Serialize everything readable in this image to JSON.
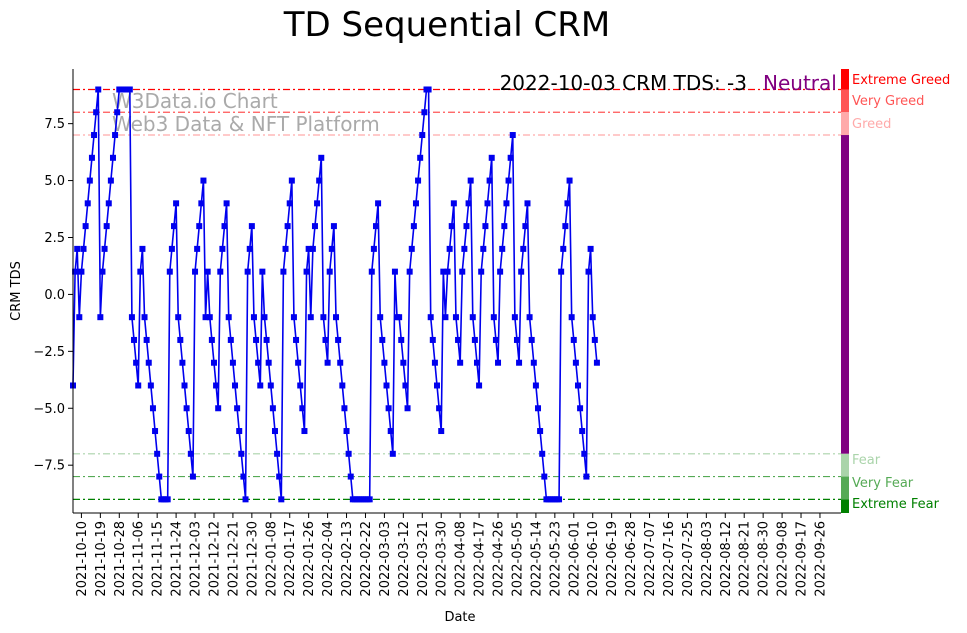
{
  "chart_data": {
    "type": "line",
    "title": "TD Sequential CRM",
    "xlabel": "Date",
    "ylabel": "CRM TDS",
    "ylim": [
      -9.6,
      9.9
    ],
    "xlim": [
      "2021-10-06",
      "2022-10-06"
    ],
    "yticks": [
      -7.5,
      -5.0,
      -2.5,
      0.0,
      2.5,
      5.0,
      7.5
    ],
    "ytick_labels": [
      "−7.5",
      "−5.0",
      "−2.5",
      "0.0",
      "2.5",
      "5.0",
      "7.5"
    ],
    "xticks": [
      "2021-10-10",
      "2021-10-19",
      "2021-10-28",
      "2021-11-06",
      "2021-11-15",
      "2021-11-24",
      "2021-12-03",
      "2021-12-12",
      "2021-12-21",
      "2021-12-30",
      "2022-01-08",
      "2022-01-17",
      "2022-01-26",
      "2022-02-04",
      "2022-02-13",
      "2022-02-22",
      "2022-03-03",
      "2022-03-12",
      "2022-03-21",
      "2022-03-30",
      "2022-04-08",
      "2022-04-17",
      "2022-04-26",
      "2022-05-05",
      "2022-05-14",
      "2022-05-23",
      "2022-06-01",
      "2022-06-10",
      "2022-06-19",
      "2022-06-28",
      "2022-07-07",
      "2022-07-16",
      "2022-07-25",
      "2022-08-03",
      "2022-08-12",
      "2022-08-21",
      "2022-08-30",
      "2022-09-08",
      "2022-09-17",
      "2022-09-26"
    ],
    "grid": false,
    "series": [
      {
        "color": "#0000ee",
        "start_date": "2021-10-06",
        "values": [
          -4,
          1,
          2,
          -1,
          1,
          2,
          3,
          4,
          5,
          6,
          7,
          8,
          9,
          -1,
          1,
          2,
          3,
          4,
          5,
          6,
          7,
          8,
          9,
          9,
          9,
          9,
          9,
          9,
          -1,
          -2,
          -3,
          -4,
          1,
          2,
          -1,
          -2,
          -3,
          -4,
          -5,
          -6,
          -7,
          -8,
          -9,
          -9,
          -9,
          -9,
          1,
          2,
          3,
          4,
          -1,
          -2,
          -3,
          -4,
          -5,
          -6,
          -7,
          -8,
          1,
          2,
          3,
          4,
          5,
          -1,
          1,
          -1,
          -2,
          -3,
          -4,
          -5,
          1,
          2,
          3,
          4,
          -1,
          -2,
          -3,
          -4,
          -5,
          -6,
          -7,
          -8,
          -9,
          1,
          2,
          3,
          -1,
          -2,
          -3,
          -4,
          1,
          -1,
          -2,
          -3,
          -4,
          -5,
          -6,
          -7,
          -8,
          -9,
          1,
          2,
          3,
          4,
          5,
          -1,
          -2,
          -3,
          -4,
          -5,
          -6,
          1,
          2,
          -1,
          2,
          3,
          4,
          5,
          6,
          -1,
          -2,
          -3,
          1,
          2,
          3,
          -1,
          -2,
          -3,
          -4,
          -5,
          -6,
          -7,
          -8,
          -9,
          -9,
          -9,
          -9,
          -9,
          -9,
          -9,
          -9,
          -9,
          1,
          2,
          3,
          4,
          -1,
          -2,
          -3,
          -4,
          -5,
          -6,
          -7,
          1,
          -1,
          -1,
          -2,
          -3,
          -4,
          -5,
          1,
          2,
          3,
          4,
          5,
          6,
          7,
          8,
          9,
          9,
          -1,
          -2,
          -3,
          -4,
          -5,
          -6,
          1,
          -1,
          1,
          2,
          3,
          4,
          -1,
          -2,
          -3,
          1,
          2,
          3,
          4,
          5,
          -1,
          -2,
          -3,
          -4,
          1,
          2,
          3,
          4,
          5,
          6,
          -1,
          -2,
          -3,
          1,
          2,
          3,
          4,
          5,
          6,
          7,
          -1,
          -2,
          -3,
          1,
          2,
          3,
          4,
          -1,
          -2,
          -3,
          -4,
          -5,
          -6,
          -7,
          -8,
          -9,
          -9,
          -9,
          -9,
          -9,
          -9,
          -9,
          1,
          2,
          3,
          4,
          5,
          -1,
          -2,
          -3,
          -4,
          -5,
          -6,
          -7,
          -8,
          1,
          2,
          -1,
          -2,
          -3
        ]
      }
    ],
    "levels": [
      {
        "value": 9,
        "color": "#ff0000",
        "name": "Extreme Greed"
      },
      {
        "value": 8,
        "color": "#ff5555",
        "name": "Very Greed"
      },
      {
        "value": 7,
        "color": "#ffaaaa",
        "name": "Greed"
      },
      {
        "value": -7,
        "color": "#aad4aa",
        "name": "Fear"
      },
      {
        "value": -8,
        "color": "#55aa55",
        "name": "Very Fear"
      },
      {
        "value": -9,
        "color": "#008000",
        "name": "Extreme Fear"
      }
    ],
    "side_band": [
      {
        "from": 9,
        "to": 9.9,
        "color": "#ff0000"
      },
      {
        "from": 8,
        "to": 9,
        "color": "#ff5555"
      },
      {
        "from": 7,
        "to": 8,
        "color": "#ffaaaa"
      },
      {
        "from": -7,
        "to": 7,
        "color": "#800080"
      },
      {
        "from": -8,
        "to": -7,
        "color": "#aad4aa"
      },
      {
        "from": -9,
        "to": -8,
        "color": "#55aa55"
      },
      {
        "from": -9.6,
        "to": -9,
        "color": "#008000"
      }
    ],
    "status": {
      "text": "2022-10-03 CRM TDS: -3",
      "word": "Neutral",
      "word_color": "#800080"
    },
    "watermark": [
      "W3Data.io Chart",
      "Web3 Data & NFT Platform"
    ]
  }
}
